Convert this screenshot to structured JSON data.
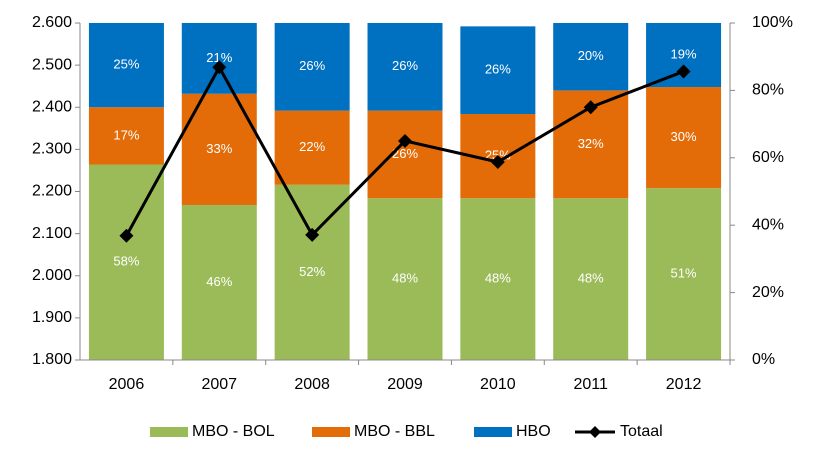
{
  "chart_data": {
    "type": "bar",
    "categories": [
      "2006",
      "2007",
      "2008",
      "2009",
      "2010",
      "2011",
      "2012"
    ],
    "stacked": true,
    "series": [
      {
        "name": "MBO - BOL",
        "color": "#9bbb59",
        "axis": "y2",
        "values": [
          58,
          46,
          52,
          48,
          48,
          48,
          51
        ],
        "value_labels": [
          "58%",
          "46%",
          "52%",
          "48%",
          "48%",
          "48%",
          "51%"
        ]
      },
      {
        "name": "MBO - BBL",
        "color": "#e36c09",
        "axis": "y2",
        "values": [
          17,
          33,
          22,
          26,
          25,
          32,
          30
        ],
        "value_labels": [
          "17%",
          "33%",
          "22%",
          "26%",
          "25%",
          "32%",
          "30%"
        ]
      },
      {
        "name": "HBO",
        "color": "#0070c0",
        "axis": "y2",
        "values": [
          25,
          21,
          26,
          26,
          26,
          20,
          19
        ],
        "value_labels": [
          "25%",
          "21%",
          "26%",
          "26%",
          "26%",
          "20%",
          "19%"
        ]
      },
      {
        "name": "Totaal",
        "color": "#000000",
        "type": "line",
        "values": [
          2095,
          2495,
          2097,
          2320,
          2270,
          2400,
          2485
        ]
      }
    ],
    "ylim": [
      1800,
      2600
    ],
    "yticks": [
      {
        "value": 1800,
        "label": "1.800"
      },
      {
        "value": 1900,
        "label": "1.900"
      },
      {
        "value": 2000,
        "label": "2.000"
      },
      {
        "value": 2100,
        "label": "2.100"
      },
      {
        "value": 2200,
        "label": "2.200"
      },
      {
        "value": 2300,
        "label": "2.300"
      },
      {
        "value": 2400,
        "label": "2.400"
      },
      {
        "value": 2500,
        "label": "2.500"
      },
      {
        "value": 2600,
        "label": "2.600"
      }
    ],
    "y2lim": [
      0,
      100
    ],
    "y2ticks": [
      {
        "value": 0,
        "label": "0%"
      },
      {
        "value": 20,
        "label": "20%"
      },
      {
        "value": 40,
        "label": "40%"
      },
      {
        "value": 60,
        "label": "60%"
      },
      {
        "value": 80,
        "label": "80%"
      },
      {
        "value": 100,
        "label": "100%"
      }
    ],
    "grid": false,
    "legend": "bottom"
  }
}
